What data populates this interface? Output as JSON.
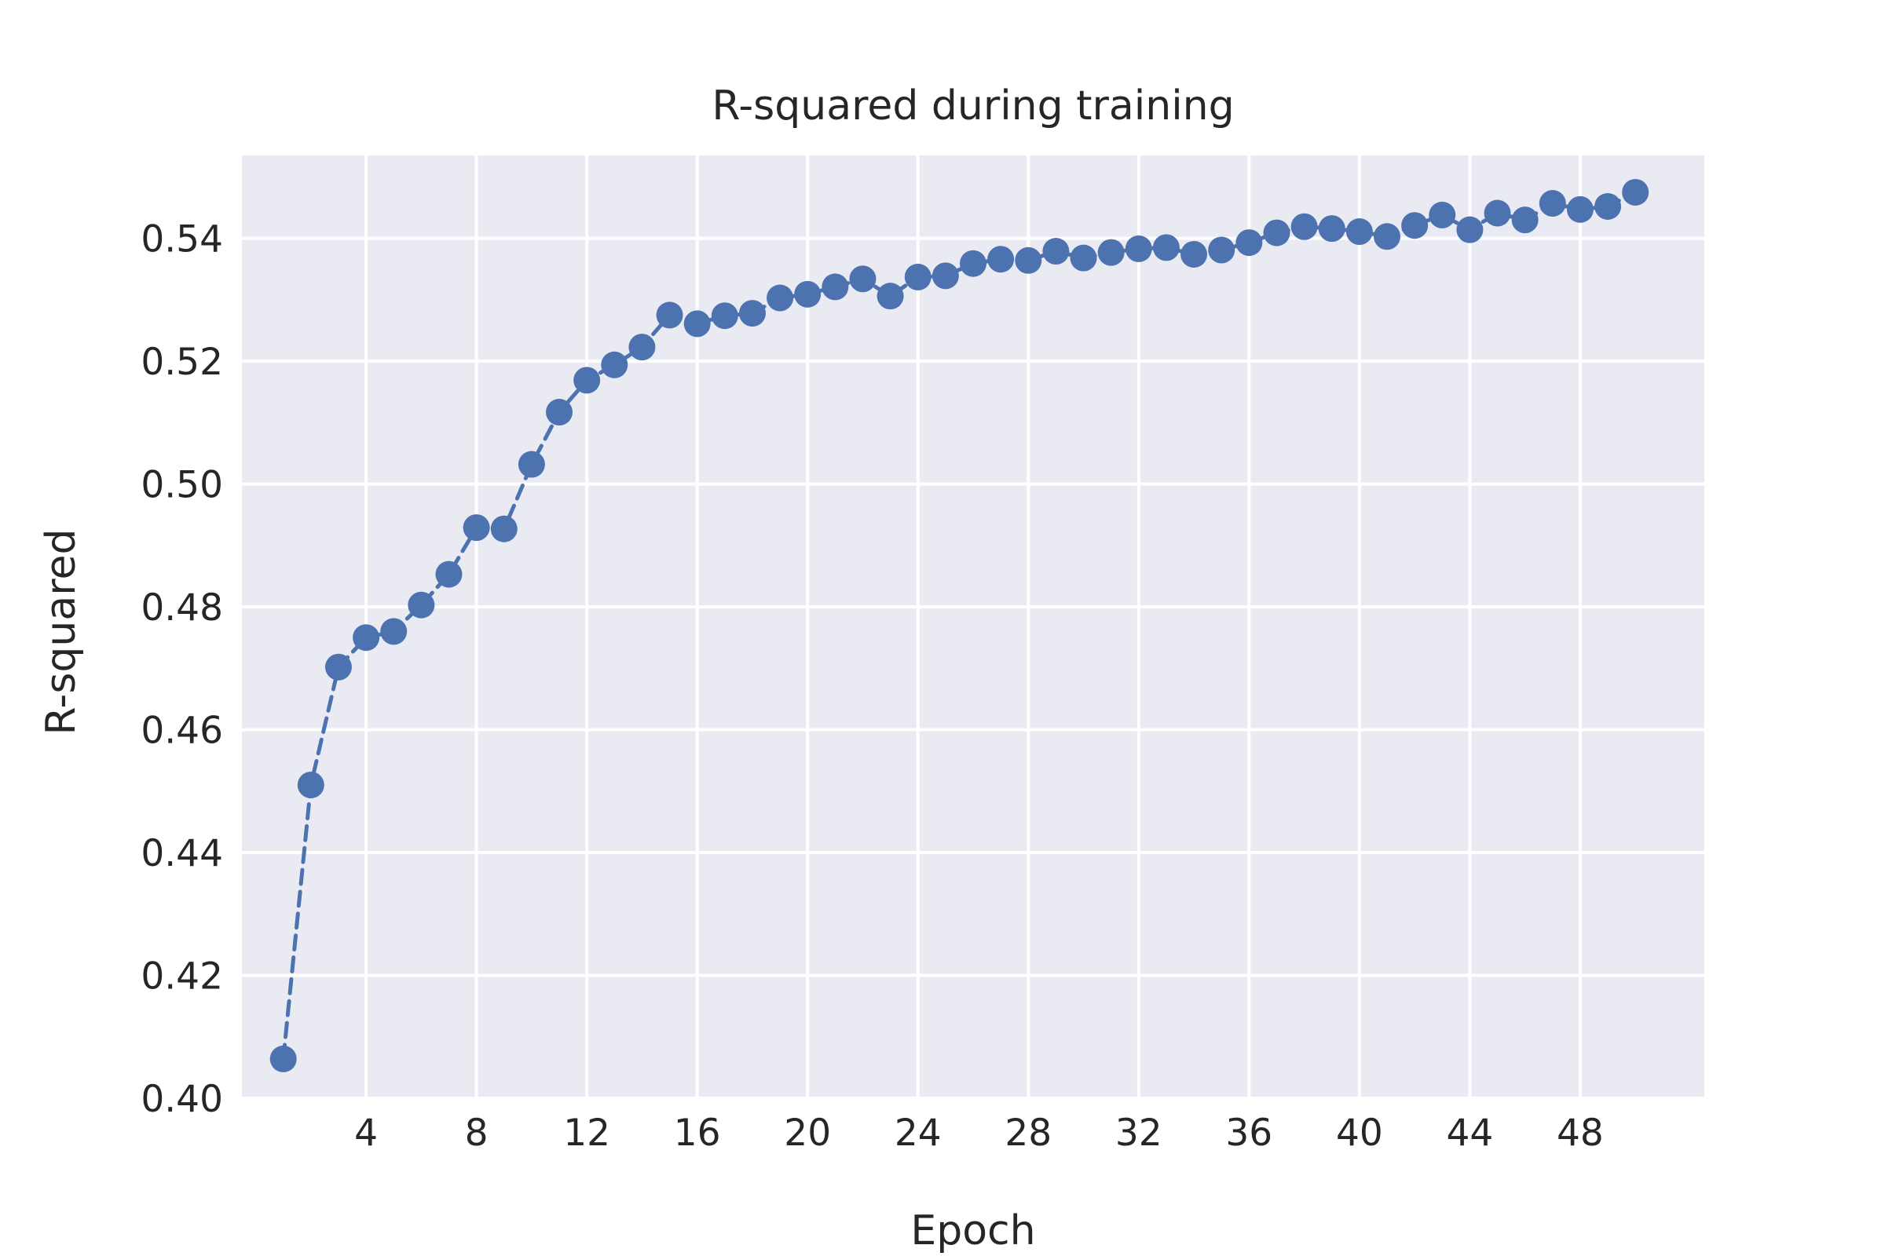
{
  "chart_data": {
    "type": "line",
    "title": "R-squared during training",
    "xlabel": "Epoch",
    "ylabel": "R-squared",
    "xlim": [
      -0.5,
      52.5
    ],
    "ylim": [
      0.4,
      0.5535
    ],
    "xticks": [
      4,
      8,
      12,
      16,
      20,
      24,
      28,
      32,
      36,
      40,
      44,
      48
    ],
    "yticks": [
      0.4,
      0.42,
      0.44,
      0.46,
      0.48,
      0.5,
      0.52,
      0.54
    ],
    "ytick_labels": [
      "0.40",
      "0.42",
      "0.44",
      "0.46",
      "0.48",
      "0.50",
      "0.52",
      "0.54"
    ],
    "grid": true,
    "line_style": "dashed",
    "marker": "circle",
    "colors": {
      "series": "#4c72b0",
      "plot_background": "#eaeaf2",
      "grid": "#ffffff",
      "text": "#262626"
    },
    "series": [
      {
        "x": [
          1,
          2,
          3,
          4,
          5,
          6,
          7,
          8,
          9,
          10,
          11,
          12,
          13,
          14,
          15,
          16,
          17,
          18,
          19,
          20,
          21,
          22,
          23,
          24,
          25,
          26,
          27,
          28,
          29,
          30,
          31,
          32,
          33,
          34,
          35,
          36,
          37,
          38,
          39,
          40,
          41,
          42,
          43,
          44,
          45,
          46,
          47,
          48,
          49,
          50
        ],
        "values": [
          0.4064,
          0.451,
          0.4702,
          0.475,
          0.476,
          0.4803,
          0.4853,
          0.4929,
          0.4927,
          0.5032,
          0.5117,
          0.5169,
          0.5194,
          0.5223,
          0.5275,
          0.5261,
          0.5274,
          0.5278,
          0.5303,
          0.5309,
          0.5321,
          0.5334,
          0.5306,
          0.5337,
          0.5339,
          0.5359,
          0.5366,
          0.5364,
          0.5379,
          0.5368,
          0.5377,
          0.5383,
          0.5385,
          0.5374,
          0.5381,
          0.5393,
          0.5409,
          0.5419,
          0.5416,
          0.5411,
          0.5403,
          0.5421,
          0.5438,
          0.5414,
          0.5441,
          0.543,
          0.5457,
          0.5447,
          0.5452,
          0.5475
        ]
      }
    ]
  }
}
